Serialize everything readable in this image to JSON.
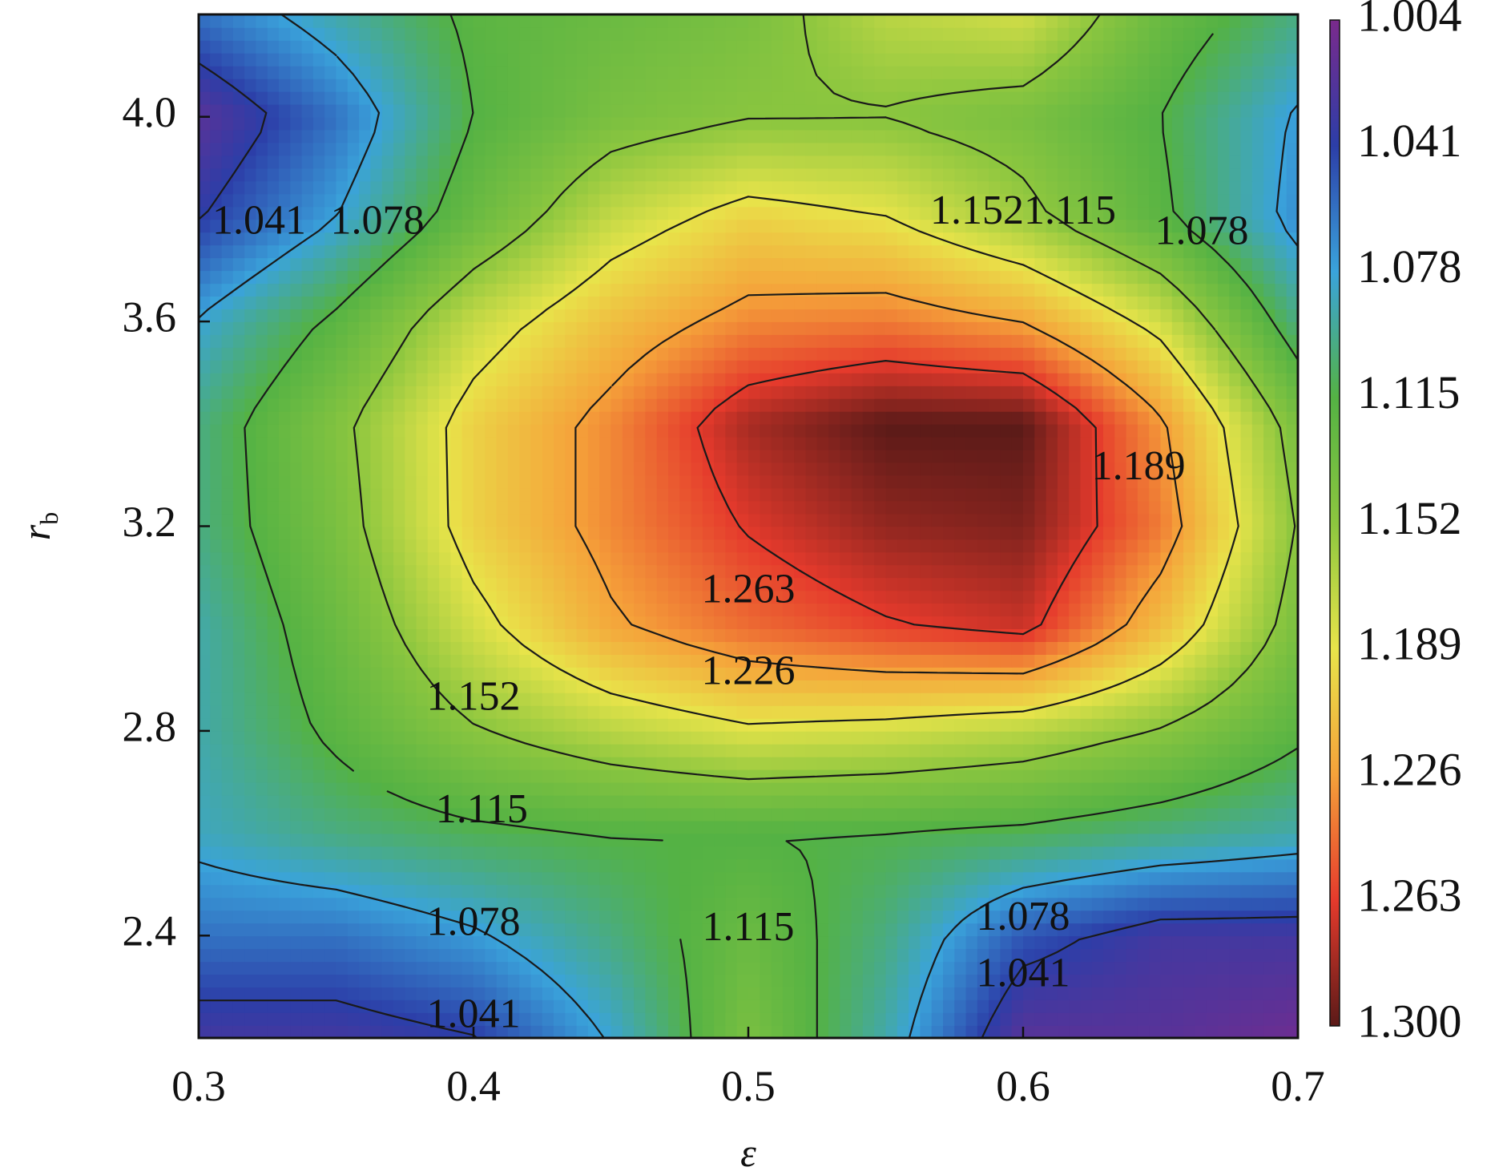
{
  "chart_data": {
    "type": "heatmap",
    "subtype": "filled-contour",
    "title": "",
    "xlabel": "ε",
    "ylabel": "r",
    "ylabel_subscript": "b",
    "xlim": [
      0.3,
      0.7
    ],
    "ylim": [
      2.2,
      4.2
    ],
    "x_ticks": [
      0.3,
      0.4,
      0.5,
      0.6,
      0.7
    ],
    "x_tick_labels": [
      "0.3",
      "0.4",
      "0.5",
      "0.6",
      "0.7"
    ],
    "y_ticks": [
      2.4,
      2.8,
      3.2,
      3.6,
      4.0
    ],
    "y_tick_labels": [
      "2.4",
      "2.8",
      "3.2",
      "3.6",
      "4.0"
    ],
    "colorbar": {
      "range": [
        1.004,
        1.3
      ],
      "orientation": "vertical",
      "top_value": 1.004,
      "bottom_value": 1.3,
      "tick_labels": [
        "1.004",
        "1.041",
        "1.078",
        "1.115",
        "1.152",
        "1.189",
        "1.226",
        "1.263",
        "1.300"
      ],
      "colormap": [
        "#7a2a8c",
        "#2c3ea8",
        "#3aa3db",
        "#54b244",
        "#8cc63f",
        "#e8e44a",
        "#f5a23a",
        "#e53a2c",
        "#5a1a18"
      ]
    },
    "x": [
      0.3,
      0.35,
      0.4,
      0.45,
      0.5,
      0.55,
      0.6,
      0.65,
      0.7
    ],
    "y": [
      2.2,
      2.4,
      2.6,
      2.8,
      3.0,
      3.2,
      3.4,
      3.6,
      3.8,
      4.0,
      4.2
    ],
    "z": [
      [
        1.03,
        1.03,
        1.04,
        1.08,
        1.14,
        1.09,
        1.02,
        1.02,
        1.01
      ],
      [
        1.06,
        1.06,
        1.075,
        1.1,
        1.13,
        1.1,
        1.05,
        1.03,
        1.03
      ],
      [
        1.085,
        1.1,
        1.11,
        1.115,
        1.115,
        1.113,
        1.11,
        1.1,
        1.09
      ],
      [
        1.09,
        1.12,
        1.15,
        1.17,
        1.185,
        1.18,
        1.17,
        1.15,
        1.12
      ],
      [
        1.09,
        1.13,
        1.18,
        1.222,
        1.245,
        1.26,
        1.27,
        1.21,
        1.14
      ],
      [
        1.1,
        1.14,
        1.2,
        1.235,
        1.265,
        1.285,
        1.29,
        1.24,
        1.15
      ],
      [
        1.1,
        1.145,
        1.2,
        1.235,
        1.28,
        1.3,
        1.3,
        1.23,
        1.14
      ],
      [
        1.08,
        1.12,
        1.175,
        1.21,
        1.235,
        1.24,
        1.225,
        1.18,
        1.1
      ],
      [
        1.04,
        1.078,
        1.13,
        1.175,
        1.2,
        1.19,
        1.16,
        1.12,
        1.07
      ],
      [
        1.02,
        1.06,
        1.115,
        1.14,
        1.15,
        1.15,
        1.14,
        1.115,
        1.075
      ],
      [
        1.06,
        1.09,
        1.12,
        1.13,
        1.14,
        1.17,
        1.18,
        1.13,
        1.1
      ]
    ],
    "contour_labels": [
      {
        "text": "1.041",
        "x": 0.322,
        "y": 3.79
      },
      {
        "text": "1.078",
        "x": 0.365,
        "y": 3.79
      },
      {
        "text": "1.1521.115",
        "x": 0.6,
        "y": 3.81
      },
      {
        "text": "1.078",
        "x": 0.665,
        "y": 3.77
      },
      {
        "text": "1.189",
        "x": 0.642,
        "y": 3.31
      },
      {
        "text": "1.263",
        "x": 0.5,
        "y": 3.07
      },
      {
        "text": "1.226",
        "x": 0.5,
        "y": 2.91
      },
      {
        "text": "1.152",
        "x": 0.4,
        "y": 2.86
      },
      {
        "text": "1.115",
        "x": 0.403,
        "y": 2.64
      },
      {
        "text": "1.078",
        "x": 0.4,
        "y": 2.42
      },
      {
        "text": "1.115",
        "x": 0.5,
        "y": 2.41
      },
      {
        "text": "1.078",
        "x": 0.6,
        "y": 2.43
      },
      {
        "text": "1.041",
        "x": 0.6,
        "y": 2.32
      },
      {
        "text": "1.041",
        "x": 0.4,
        "y": 2.24
      }
    ],
    "grid": false,
    "legend": "colorbar-right"
  }
}
